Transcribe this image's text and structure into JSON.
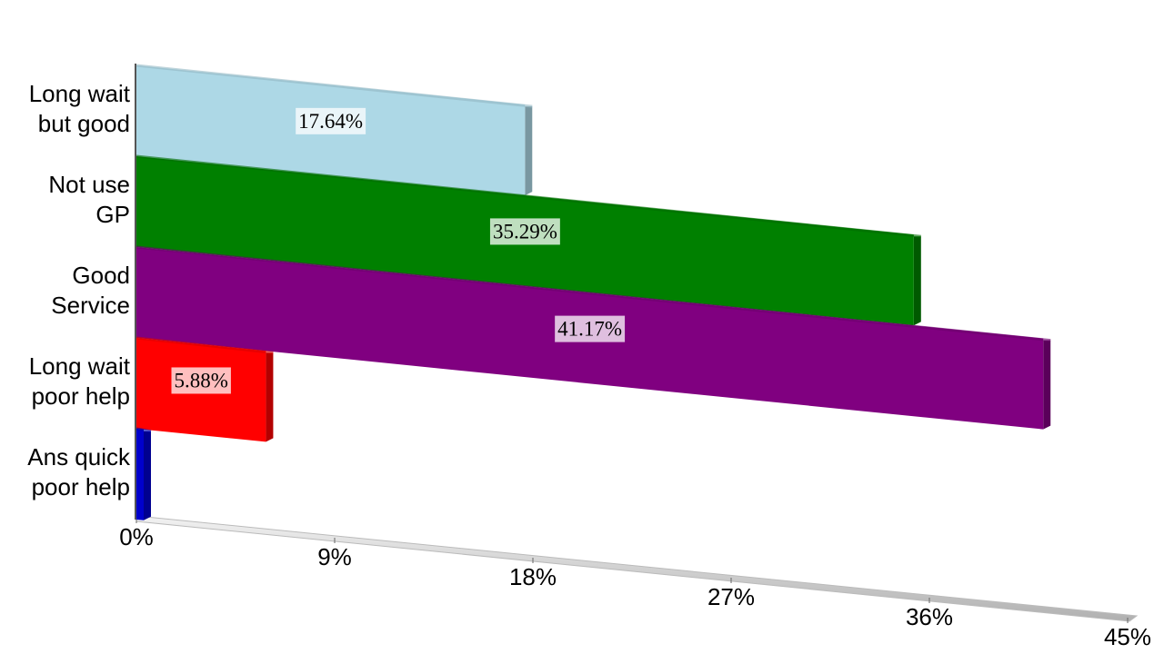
{
  "chart_data": {
    "type": "bar",
    "categories": [
      "Long wait but good",
      "Not use GP",
      "Good Service",
      "Long wait poor help",
      "Ans quick poor help"
    ],
    "values": [
      17.64,
      35.29,
      41.17,
      5.88,
      0
    ],
    "value_labels": [
      "17.64%",
      "35.29%",
      "41.17%",
      "5.88%",
      null
    ],
    "colors": [
      "#add8e6",
      "#008000",
      "#800080",
      "#ff0000",
      "#0000cd"
    ],
    "xlim": [
      0,
      45
    ],
    "xticks": [
      {
        "value": 0,
        "label": "0%"
      },
      {
        "value": 9,
        "label": "9%"
      },
      {
        "value": 18,
        "label": "18%"
      },
      {
        "value": 27,
        "label": "27%"
      },
      {
        "value": 36,
        "label": "36%"
      },
      {
        "value": 45,
        "label": "45%"
      }
    ]
  }
}
